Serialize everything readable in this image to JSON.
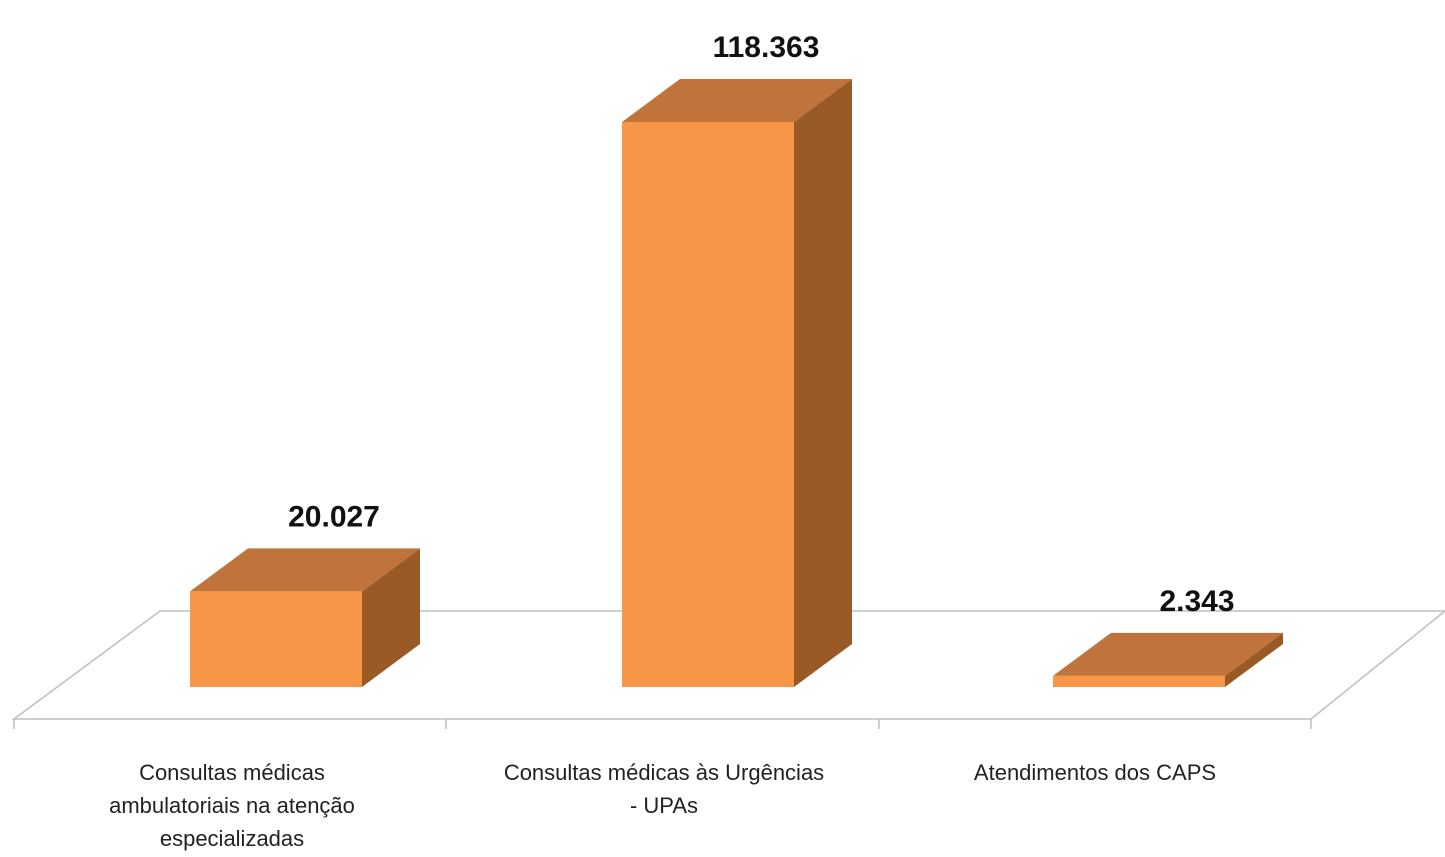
{
  "chart_data": {
    "type": "bar",
    "categories": [
      "Consultas médicas ambulatoriais na atenção especializadas",
      "Consultas médicas às Urgências - UPAs",
      "Atendimentos dos CAPS"
    ],
    "category_lines": [
      [
        "Consultas médicas",
        "ambulatoriais na atenção",
        "especializadas"
      ],
      [
        "Consultas médicas às Urgências",
        "- UPAs"
      ],
      [
        "Atendimentos dos CAPS"
      ]
    ],
    "values": [
      20027,
      118363,
      2343
    ],
    "value_labels": [
      "20.027",
      "118.363",
      "2.343"
    ],
    "title": "",
    "xlabel": "",
    "ylabel": "",
    "ylim": [
      0,
      118363
    ],
    "grid": false,
    "legend": "none",
    "style": "3d-column",
    "colors": {
      "front": "#F79646",
      "top": "#C0733A",
      "side": "#995A26",
      "floor_line": "#BFBFBF"
    }
  }
}
